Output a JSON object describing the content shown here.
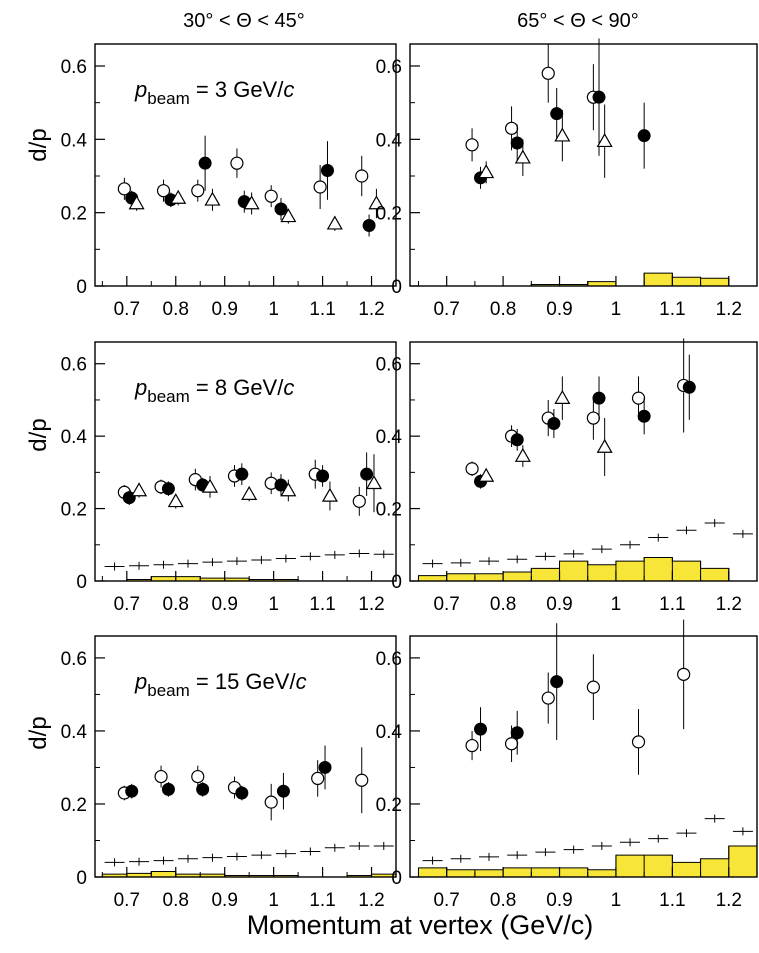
{
  "column_titles": [
    "30° < Θ < 45°",
    "65° < Θ < 90°"
  ],
  "ylabel": "d/p",
  "xlabel": "Momentum at vertex (GeV/c)",
  "x_ticks": [
    "0.7",
    "0.8",
    "0.9",
    "1",
    "1.1",
    "1.2"
  ],
  "y_ticks": [
    "0",
    "0.2",
    "0.4",
    "0.6"
  ],
  "colors": {
    "histogram_fill": "#f7e637",
    "line": "#000000"
  },
  "chart_data": [
    {
      "type": "scatter",
      "panel": "top-left",
      "row": 0,
      "col": 0,
      "beam_label": {
        "p": "p",
        "sub": "beam",
        "value": " = 3 GeV/",
        "unit": "c"
      },
      "xlim": [
        0.635,
        1.25
      ],
      "ylim": [
        0,
        0.66
      ],
      "series": [
        {
          "marker": "open-circle",
          "x": [
            0.695,
            0.775,
            0.845,
            0.925,
            0.995,
            1.095,
            1.18
          ],
          "y": [
            0.265,
            0.26,
            0.26,
            0.335,
            0.245,
            0.27,
            0.3
          ],
          "err": [
            0.03,
            0.03,
            0.03,
            0.04,
            0.03,
            0.06,
            0.055
          ]
        },
        {
          "marker": "filled-circle",
          "x": [
            0.71,
            0.79,
            0.86,
            0.94,
            1.015,
            1.11,
            1.195
          ],
          "y": [
            0.24,
            0.235,
            0.335,
            0.23,
            0.21,
            0.315,
            0.165
          ],
          "err": [
            0.02,
            0.02,
            0.075,
            0.03,
            0.03,
            0.08,
            0.03
          ]
        },
        {
          "marker": "open-triangle",
          "x": [
            0.72,
            0.805,
            0.875,
            0.955,
            1.03,
            1.125,
            1.21
          ],
          "y": [
            0.225,
            0.24,
            0.235,
            0.225,
            0.19,
            0.17,
            0.225
          ],
          "err": [
            0.02,
            0.02,
            0.03,
            0.03,
            0.02,
            0.02,
            0.04
          ]
        }
      ],
      "histogram": {
        "edges": [
          0.65,
          0.7,
          0.75,
          0.8,
          0.85,
          0.9,
          0.95,
          1.0,
          1.05,
          1.1,
          1.15,
          1.2,
          1.25
        ],
        "values": [
          0,
          0,
          0,
          0,
          0,
          0,
          0,
          0,
          0,
          0,
          0,
          0
        ]
      },
      "sys_markers": []
    },
    {
      "type": "scatter",
      "panel": "top-right",
      "row": 0,
      "col": 1,
      "xlim": [
        0.635,
        1.25
      ],
      "ylim": [
        0,
        0.66
      ],
      "series": [
        {
          "marker": "open-circle",
          "x": [
            0.745,
            0.815,
            0.88,
            0.96
          ],
          "y": [
            0.385,
            0.43,
            0.58,
            0.515
          ],
          "err": [
            0.045,
            0.06,
            0.08,
            0.09
          ]
        },
        {
          "marker": "filled-circle",
          "x": [
            0.76,
            0.825,
            0.895,
            0.97,
            1.05
          ],
          "y": [
            0.295,
            0.39,
            0.47,
            0.515,
            0.41
          ],
          "err": [
            0.03,
            0.05,
            0.07,
            0.16,
            0.09
          ]
        },
        {
          "marker": "open-triangle",
          "x": [
            0.77,
            0.835,
            0.905,
            0.98
          ],
          "y": [
            0.31,
            0.35,
            0.41,
            0.395
          ],
          "err": [
            0.03,
            0.05,
            0.07,
            0.1
          ]
        }
      ],
      "histogram": {
        "edges": [
          0.65,
          0.7,
          0.75,
          0.8,
          0.85,
          0.9,
          0.95,
          1.0,
          1.05,
          1.1,
          1.15,
          1.2,
          1.25
        ],
        "values": [
          0,
          0,
          0,
          0,
          0.004,
          0.004,
          0.012,
          0,
          0.035,
          0.024,
          0.021,
          0
        ]
      },
      "sys_markers": []
    },
    {
      "type": "scatter",
      "panel": "middle-left",
      "row": 1,
      "col": 0,
      "beam_label": {
        "p": "p",
        "sub": "beam",
        "value": " = 8 GeV/",
        "unit": "c"
      },
      "xlim": [
        0.635,
        1.25
      ],
      "ylim": [
        0,
        0.66
      ],
      "series": [
        {
          "marker": "open-circle",
          "x": [
            0.695,
            0.77,
            0.84,
            0.92,
            0.995,
            1.085,
            1.175
          ],
          "y": [
            0.245,
            0.26,
            0.28,
            0.29,
            0.27,
            0.295,
            0.22
          ],
          "err": [
            0.02,
            0.02,
            0.03,
            0.03,
            0.03,
            0.04,
            0.04
          ]
        },
        {
          "marker": "filled-circle",
          "x": [
            0.705,
            0.785,
            0.855,
            0.935,
            1.015,
            1.1,
            1.19
          ],
          "y": [
            0.23,
            0.255,
            0.265,
            0.295,
            0.265,
            0.29,
            0.295
          ],
          "err": [
            0.02,
            0.02,
            0.02,
            0.03,
            0.03,
            0.03,
            0.06
          ]
        },
        {
          "marker": "open-triangle",
          "x": [
            0.725,
            0.8,
            0.87,
            0.95,
            1.03,
            1.115,
            1.205
          ],
          "y": [
            0.25,
            0.22,
            0.26,
            0.24,
            0.25,
            0.235,
            0.27
          ],
          "err": [
            0.02,
            0.02,
            0.03,
            0.02,
            0.03,
            0.04,
            0.08
          ]
        }
      ],
      "histogram": {
        "edges": [
          0.65,
          0.7,
          0.75,
          0.8,
          0.85,
          0.9,
          0.95,
          1.0,
          1.05,
          1.1,
          1.15,
          1.2,
          1.25
        ],
        "values": [
          0,
          0.004,
          0.012,
          0.012,
          0.008,
          0.008,
          0.004,
          0.004,
          0,
          0,
          0,
          0
        ]
      },
      "sys_markers": [
        {
          "x": 0.675,
          "y": 0.04
        },
        {
          "x": 0.725,
          "y": 0.042
        },
        {
          "x": 0.775,
          "y": 0.045
        },
        {
          "x": 0.825,
          "y": 0.048
        },
        {
          "x": 0.875,
          "y": 0.052
        },
        {
          "x": 0.925,
          "y": 0.055
        },
        {
          "x": 0.975,
          "y": 0.058
        },
        {
          "x": 1.025,
          "y": 0.062
        },
        {
          "x": 1.075,
          "y": 0.068
        },
        {
          "x": 1.125,
          "y": 0.072
        },
        {
          "x": 1.175,
          "y": 0.076
        },
        {
          "x": 1.225,
          "y": 0.074
        }
      ]
    },
    {
      "type": "scatter",
      "panel": "middle-right",
      "row": 1,
      "col": 1,
      "xlim": [
        0.635,
        1.25
      ],
      "ylim": [
        0,
        0.66
      ],
      "series": [
        {
          "marker": "open-circle",
          "x": [
            0.745,
            0.815,
            0.88,
            0.96,
            1.04,
            1.12
          ],
          "y": [
            0.31,
            0.4,
            0.45,
            0.45,
            0.505,
            0.54
          ],
          "err": [
            0.02,
            0.03,
            0.05,
            0.06,
            0.06,
            0.13
          ]
        },
        {
          "marker": "filled-circle",
          "x": [
            0.76,
            0.825,
            0.89,
            0.97,
            1.05,
            1.13
          ],
          "y": [
            0.275,
            0.39,
            0.435,
            0.505,
            0.455,
            0.535
          ],
          "err": [
            0.02,
            0.03,
            0.04,
            0.06,
            0.05,
            0.09
          ]
        },
        {
          "marker": "open-triangle",
          "x": [
            0.77,
            0.835,
            0.905,
            0.98
          ],
          "y": [
            0.29,
            0.345,
            0.505,
            0.37
          ],
          "err": [
            0.02,
            0.03,
            0.06,
            0.08
          ]
        }
      ],
      "histogram": {
        "edges": [
          0.65,
          0.7,
          0.75,
          0.8,
          0.85,
          0.9,
          0.95,
          1.0,
          1.05,
          1.1,
          1.15,
          1.2,
          1.25
        ],
        "values": [
          0.015,
          0.02,
          0.02,
          0.025,
          0.035,
          0.055,
          0.045,
          0.055,
          0.065,
          0.055,
          0.035,
          0
        ]
      },
      "sys_markers": [
        {
          "x": 0.675,
          "y": 0.048
        },
        {
          "x": 0.725,
          "y": 0.05
        },
        {
          "x": 0.775,
          "y": 0.055
        },
        {
          "x": 0.825,
          "y": 0.06
        },
        {
          "x": 0.875,
          "y": 0.068
        },
        {
          "x": 0.925,
          "y": 0.075
        },
        {
          "x": 0.975,
          "y": 0.088
        },
        {
          "x": 1.025,
          "y": 0.1
        },
        {
          "x": 1.075,
          "y": 0.12
        },
        {
          "x": 1.125,
          "y": 0.14
        },
        {
          "x": 1.175,
          "y": 0.16
        },
        {
          "x": 1.225,
          "y": 0.13
        }
      ]
    },
    {
      "type": "scatter",
      "panel": "bottom-left",
      "row": 2,
      "col": 0,
      "beam_label": {
        "p": "p",
        "sub": "beam",
        "value": " = 15 GeV/",
        "unit": "c"
      },
      "xlim": [
        0.635,
        1.25
      ],
      "ylim": [
        0,
        0.66
      ],
      "series": [
        {
          "marker": "open-circle",
          "x": [
            0.695,
            0.77,
            0.845,
            0.92,
            0.995,
            1.09,
            1.18
          ],
          "y": [
            0.23,
            0.275,
            0.275,
            0.245,
            0.205,
            0.27,
            0.265
          ],
          "err": [
            0.02,
            0.03,
            0.03,
            0.03,
            0.05,
            0.05,
            0.09
          ]
        },
        {
          "marker": "filled-circle",
          "x": [
            0.71,
            0.785,
            0.855,
            0.935,
            1.02,
            1.105
          ],
          "y": [
            0.235,
            0.24,
            0.24,
            0.23,
            0.235,
            0.3
          ],
          "err": [
            0.02,
            0.02,
            0.02,
            0.02,
            0.05,
            0.06
          ]
        }
      ],
      "histogram": {
        "edges": [
          0.65,
          0.7,
          0.75,
          0.8,
          0.85,
          0.9,
          0.95,
          1.0,
          1.05,
          1.1,
          1.15,
          1.2,
          1.25
        ],
        "values": [
          0.008,
          0.01,
          0.015,
          0.008,
          0.008,
          0.004,
          0.004,
          0.004,
          0,
          0,
          0.004,
          0.008
        ]
      },
      "sys_markers": [
        {
          "x": 0.675,
          "y": 0.04
        },
        {
          "x": 0.725,
          "y": 0.042
        },
        {
          "x": 0.775,
          "y": 0.045
        },
        {
          "x": 0.825,
          "y": 0.05
        },
        {
          "x": 0.875,
          "y": 0.053
        },
        {
          "x": 0.925,
          "y": 0.056
        },
        {
          "x": 0.975,
          "y": 0.06
        },
        {
          "x": 1.025,
          "y": 0.064
        },
        {
          "x": 1.075,
          "y": 0.07
        },
        {
          "x": 1.125,
          "y": 0.08
        },
        {
          "x": 1.175,
          "y": 0.085
        },
        {
          "x": 1.225,
          "y": 0.085
        }
      ]
    },
    {
      "type": "scatter",
      "panel": "bottom-right",
      "row": 2,
      "col": 1,
      "xlim": [
        0.635,
        1.25
      ],
      "ylim": [
        0,
        0.66
      ],
      "series": [
        {
          "marker": "open-circle",
          "x": [
            0.745,
            0.815,
            0.88,
            0.96,
            1.04,
            1.12
          ],
          "y": [
            0.36,
            0.365,
            0.49,
            0.52,
            0.37,
            0.555
          ],
          "err": [
            0.04,
            0.05,
            0.07,
            0.09,
            0.09,
            0.15
          ]
        },
        {
          "marker": "filled-circle",
          "x": [
            0.76,
            0.825,
            0.895
          ],
          "y": [
            0.405,
            0.395,
            0.535
          ],
          "err": [
            0.06,
            0.06,
            0.16
          ]
        }
      ],
      "histogram": {
        "edges": [
          0.65,
          0.7,
          0.75,
          0.8,
          0.85,
          0.9,
          0.95,
          1.0,
          1.05,
          1.1,
          1.15,
          1.2,
          1.25
        ],
        "values": [
          0.025,
          0.02,
          0.02,
          0.025,
          0.025,
          0.025,
          0.02,
          0.06,
          0.06,
          0.04,
          0.05,
          0.085
        ]
      },
      "sys_markers": [
        {
          "x": 0.675,
          "y": 0.045
        },
        {
          "x": 0.725,
          "y": 0.05
        },
        {
          "x": 0.775,
          "y": 0.055
        },
        {
          "x": 0.825,
          "y": 0.06
        },
        {
          "x": 0.875,
          "y": 0.068
        },
        {
          "x": 0.925,
          "y": 0.075
        },
        {
          "x": 0.975,
          "y": 0.085
        },
        {
          "x": 1.025,
          "y": 0.095
        },
        {
          "x": 1.075,
          "y": 0.105
        },
        {
          "x": 1.125,
          "y": 0.12
        },
        {
          "x": 1.175,
          "y": 0.16
        },
        {
          "x": 1.225,
          "y": 0.125
        }
      ]
    }
  ]
}
